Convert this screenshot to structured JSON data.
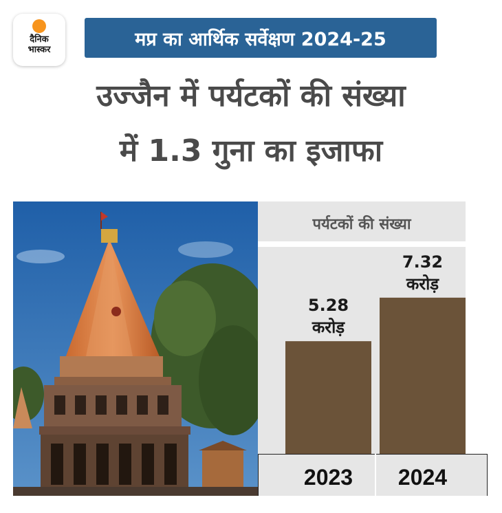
{
  "logo": {
    "line1": "दैनिक",
    "line2": "भास्कर"
  },
  "header": {
    "tag": "मप्र का आर्थिक सर्वेक्षण 2024-25"
  },
  "headline": {
    "line1": "उज्जैन में पर्यटकों की संख्या",
    "line2": "में 1.3 गुना का इजाफा"
  },
  "chart_data": {
    "type": "bar",
    "title": "पर्यटकों की संख्या",
    "categories": [
      "2023",
      "2024"
    ],
    "values": [
      5.28,
      7.32
    ],
    "value_labels": [
      {
        "value": "5.28",
        "unit": "करोड़"
      },
      {
        "value": "7.32",
        "unit": "करोड़"
      }
    ],
    "ylim": [
      0,
      9.7
    ],
    "grid": false,
    "colors": {
      "bar": "#6b5339",
      "panel": "#e6e6e6",
      "label_band": "#e6e6e6"
    }
  }
}
